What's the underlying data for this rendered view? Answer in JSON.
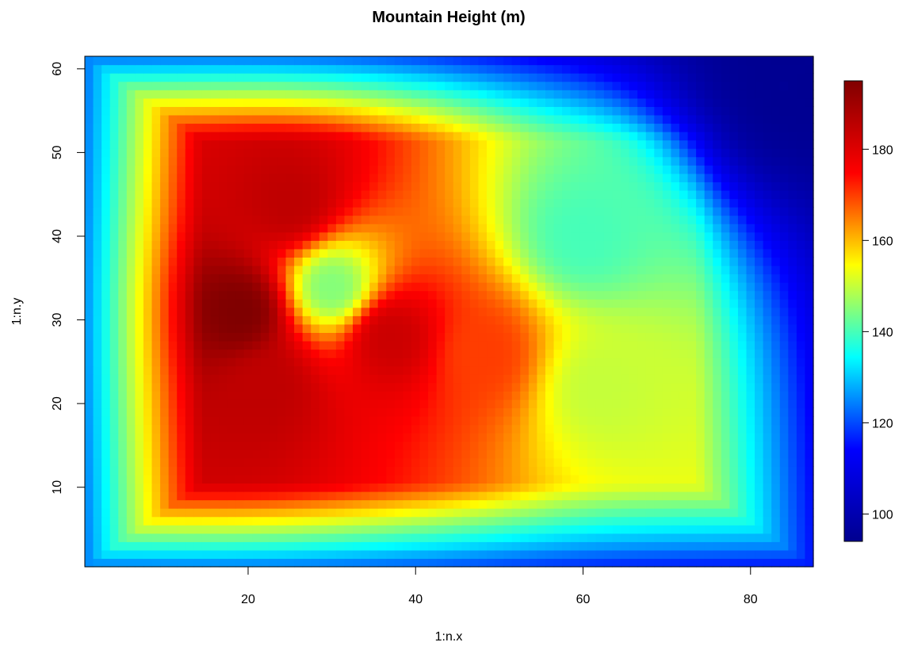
{
  "chart_data": {
    "type": "heatmap",
    "title": "Mountain Height (m)",
    "xlabel": "1:n.x",
    "ylabel": "1:n.y",
    "xlim": [
      0.5,
      87.5
    ],
    "ylim": [
      0.5,
      61.5
    ],
    "n_x": 87,
    "n_y": 61,
    "x_ticks": [
      20,
      40,
      60,
      80
    ],
    "y_ticks": [
      10,
      20,
      30,
      40,
      50,
      60
    ],
    "value_range": [
      94,
      195
    ],
    "colorbar_ticks": [
      100,
      120,
      140,
      160,
      180
    ],
    "colormap": [
      "#00008F",
      "#0000FF",
      "#00FFFF",
      "#FFFF00",
      "#FF0000",
      "#800000"
    ],
    "grid": "",
    "colorbar_position": "right",
    "features": [
      {
        "x": 19,
        "y": 31,
        "value": 195
      },
      {
        "x": 25,
        "y": 44,
        "value": 185
      },
      {
        "x": 22,
        "y": 22,
        "value": 185
      },
      {
        "x": 37,
        "y": 28,
        "value": 183
      },
      {
        "x": 48,
        "y": 26,
        "value": 170
      },
      {
        "x": 30,
        "y": 34,
        "value": 145
      },
      {
        "x": 62,
        "y": 22,
        "value": 150
      },
      {
        "x": 60,
        "y": 40,
        "value": 140
      },
      {
        "x": 84,
        "y": 58,
        "value": 95
      }
    ]
  }
}
